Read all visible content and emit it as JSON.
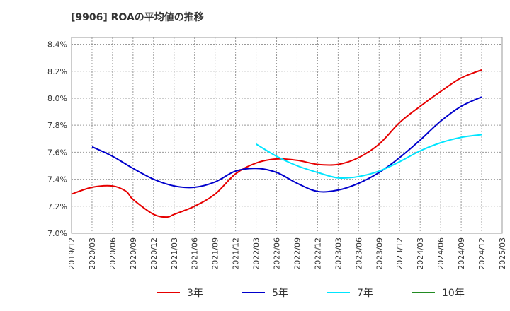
{
  "chart_data": {
    "type": "line",
    "title": "[9906]  ROAの平均値の推移",
    "xlabel": "",
    "ylabel": "",
    "x_ticks": [
      "2019/12",
      "2020/03",
      "2020/06",
      "2020/09",
      "2020/12",
      "2021/03",
      "2021/06",
      "2021/09",
      "2021/12",
      "2022/03",
      "2022/06",
      "2022/09",
      "2022/12",
      "2023/03",
      "2023/06",
      "2023/09",
      "2023/12",
      "2024/03",
      "2024/06",
      "2024/09",
      "2024/12",
      "2025/03"
    ],
    "y_ticks": [
      "7.0%",
      "7.2%",
      "7.4%",
      "7.6%",
      "7.8%",
      "8.0%",
      "8.2%",
      "8.4%"
    ],
    "ylim": [
      7.0,
      8.45
    ],
    "grid": true,
    "legend_position": "bottom",
    "series": [
      {
        "name": "3年",
        "color": "#e60000",
        "points": [
          [
            "2019/12",
            7.29
          ],
          [
            "2020/03",
            7.34
          ],
          [
            "2020/06",
            7.35
          ],
          [
            "2020/08",
            7.31
          ],
          [
            "2020/09",
            7.25
          ],
          [
            "2020/12",
            7.14
          ],
          [
            "2021/02",
            7.12
          ],
          [
            "2021/03",
            7.14
          ],
          [
            "2021/06",
            7.2
          ],
          [
            "2021/09",
            7.29
          ],
          [
            "2021/12",
            7.44
          ],
          [
            "2022/03",
            7.52
          ],
          [
            "2022/06",
            7.55
          ],
          [
            "2022/09",
            7.54
          ],
          [
            "2022/12",
            7.51
          ],
          [
            "2023/03",
            7.51
          ],
          [
            "2023/06",
            7.56
          ],
          [
            "2023/09",
            7.66
          ],
          [
            "2023/12",
            7.82
          ],
          [
            "2024/03",
            7.94
          ],
          [
            "2024/06",
            8.05
          ],
          [
            "2024/09",
            8.15
          ],
          [
            "2024/12",
            8.21
          ]
        ]
      },
      {
        "name": "5年",
        "color": "#0000cc",
        "points": [
          [
            "2020/03",
            7.64
          ],
          [
            "2020/06",
            7.57
          ],
          [
            "2020/09",
            7.48
          ],
          [
            "2020/12",
            7.4
          ],
          [
            "2021/03",
            7.35
          ],
          [
            "2021/06",
            7.34
          ],
          [
            "2021/09",
            7.38
          ],
          [
            "2021/12",
            7.46
          ],
          [
            "2022/03",
            7.48
          ],
          [
            "2022/06",
            7.45
          ],
          [
            "2022/09",
            7.37
          ],
          [
            "2022/12",
            7.31
          ],
          [
            "2023/03",
            7.32
          ],
          [
            "2023/06",
            7.37
          ],
          [
            "2023/09",
            7.45
          ],
          [
            "2023/12",
            7.56
          ],
          [
            "2024/03",
            7.69
          ],
          [
            "2024/06",
            7.83
          ],
          [
            "2024/09",
            7.94
          ],
          [
            "2024/12",
            8.01
          ]
        ]
      },
      {
        "name": "7年",
        "color": "#00e5ff",
        "points": [
          [
            "2022/03",
            7.66
          ],
          [
            "2022/06",
            7.57
          ],
          [
            "2022/09",
            7.5
          ],
          [
            "2022/12",
            7.45
          ],
          [
            "2023/03",
            7.41
          ],
          [
            "2023/06",
            7.42
          ],
          [
            "2023/09",
            7.46
          ],
          [
            "2023/12",
            7.53
          ],
          [
            "2024/03",
            7.61
          ],
          [
            "2024/06",
            7.67
          ],
          [
            "2024/09",
            7.71
          ],
          [
            "2024/12",
            7.73
          ]
        ]
      },
      {
        "name": "10年",
        "color": "#228b22",
        "points": []
      }
    ]
  }
}
